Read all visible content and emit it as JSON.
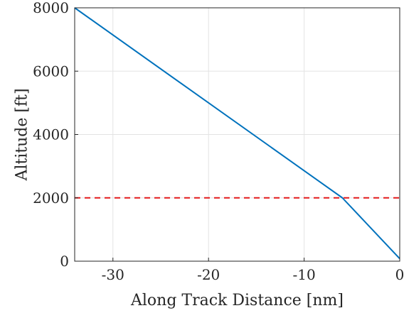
{
  "chart_data": {
    "type": "line",
    "xlabel": "Along Track Distance [nm]",
    "ylabel": "Altitude [ft]",
    "xlim": [
      -34,
      0
    ],
    "ylim": [
      0,
      8000
    ],
    "x_ticks": [
      -30,
      -20,
      -10,
      0
    ],
    "y_ticks": [
      0,
      2000,
      4000,
      6000,
      8000
    ],
    "x_tick_labels": [
      "-30",
      "-20",
      "-10",
      "0"
    ],
    "y_tick_labels": [
      "0",
      "2000",
      "4000",
      "6000",
      "8000"
    ],
    "grid": true,
    "series": [
      {
        "color": "#0072BD",
        "style": "solid",
        "x": [
          -34,
          -6,
          0
        ],
        "y": [
          8000,
          2000,
          80
        ]
      },
      {
        "color": "#E41A1C",
        "style": "dashed",
        "x": [
          -34,
          0
        ],
        "y": [
          2000,
          2000
        ]
      }
    ]
  }
}
